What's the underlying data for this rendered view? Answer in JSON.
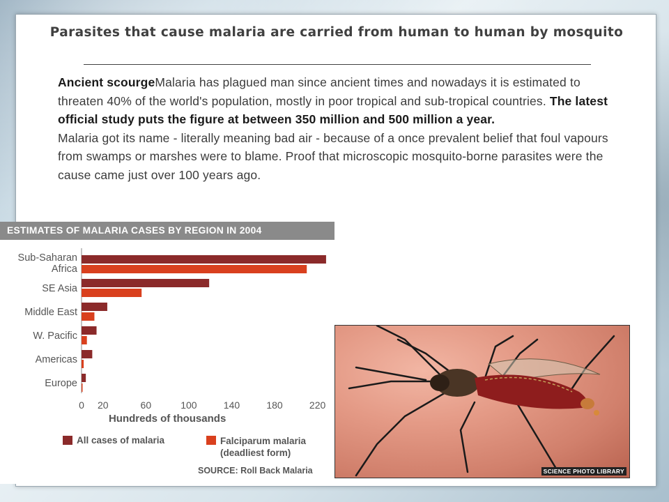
{
  "slide": {
    "title": "Parasites that cause malaria are carried from human to human by mosquito",
    "paragraph1_lead": "Ancient scourge",
    "paragraph1_text": "Malaria has plagued man since ancient times and nowadays it is estimated to threaten 40% of the world's population, mostly in poor tropical and sub-tropical countries. ",
    "paragraph1_bold": "The latest official study puts the figure at between 350 million and 500 million a year.",
    "paragraph2": "Malaria got its name - literally meaning bad air - because of a once prevalent belief that foul vapours from swamps or marshes were to blame. Proof that microscopic mosquito-borne parasites were the cause came just over 100 years ago."
  },
  "chart_data": {
    "type": "bar",
    "title": "ESTIMATES OF MALARIA CASES BY REGION IN 2004",
    "categories": [
      "Sub-Saharan Africa",
      "SE Asia",
      "Middle East",
      "W. Pacific",
      "Americas",
      "Europe"
    ],
    "series": [
      {
        "name": "All cases of malaria",
        "values": [
          228,
          119,
          24,
          14,
          10,
          4
        ],
        "color": "#8b2a2a"
      },
      {
        "name": "Falciparum malaria (deadliest form)",
        "values": [
          210,
          56,
          12,
          5,
          2,
          0.5
        ],
        "color": "#d9401e"
      }
    ],
    "xlabel": "Hundreds of thousands",
    "xticks": [
      0,
      20,
      60,
      100,
      140,
      180,
      220
    ],
    "xlim": [
      0,
      230
    ],
    "source": "SOURCE: Roll Back Malaria",
    "orientation": "horizontal"
  },
  "photo": {
    "credit": "SCIENCE PHOTO LIBRARY",
    "subject": "mosquito-on-skin"
  }
}
